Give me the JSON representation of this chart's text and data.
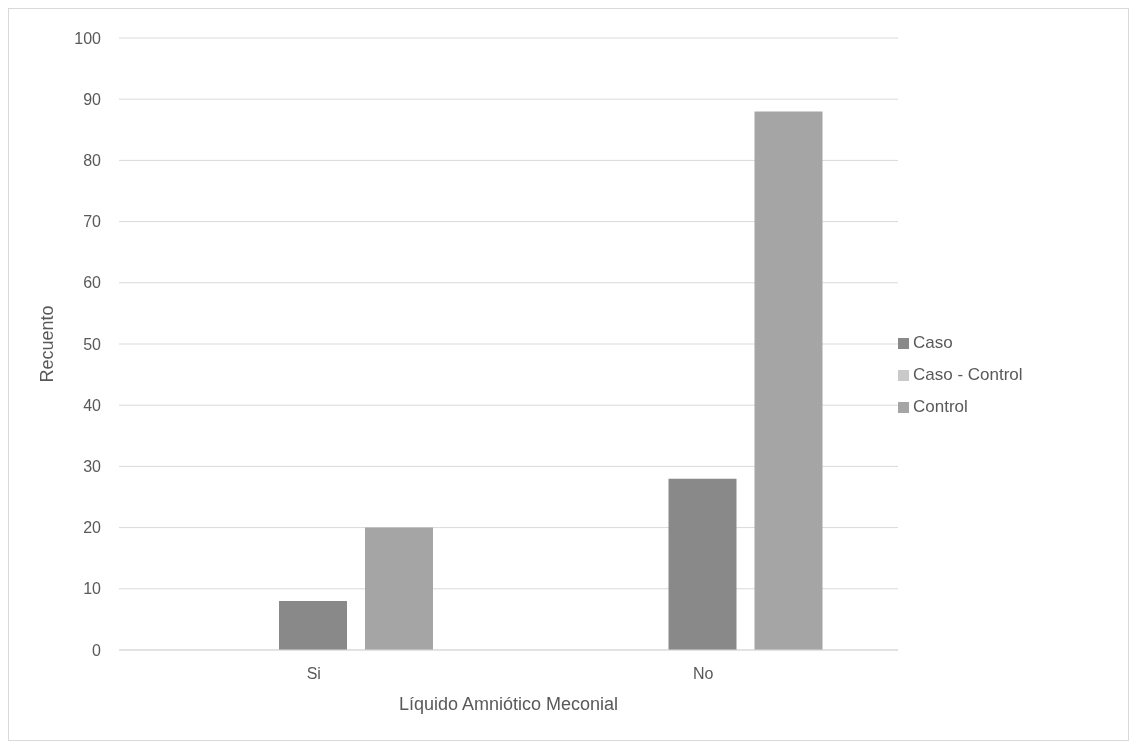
{
  "chart_data": {
    "type": "bar",
    "xlabel": "Líquido Amniótico Meconial",
    "ylabel": "Recuento",
    "categories": [
      "Si",
      "No"
    ],
    "series": [
      {
        "name": "Caso - Control",
        "color": "#c9c9c9",
        "values": [
          null,
          null
        ]
      },
      {
        "name": "Caso",
        "color": "#898989",
        "values": [
          8,
          28
        ]
      },
      {
        "name": "Control",
        "color": "#a5a5a5",
        "values": [
          20,
          88
        ]
      }
    ],
    "ylim": [
      0,
      100
    ],
    "yticks": [
      0,
      10,
      20,
      30,
      40,
      50,
      60,
      70,
      80,
      90,
      100
    ],
    "grid": "y",
    "legend": "right"
  }
}
